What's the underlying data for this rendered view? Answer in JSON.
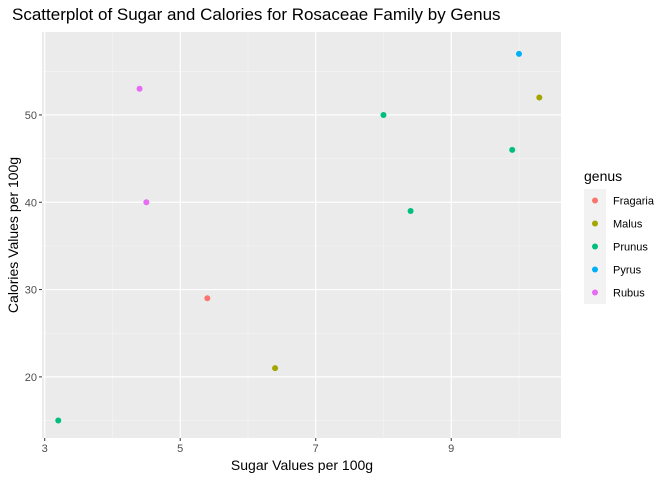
{
  "chart_data": {
    "type": "scatter",
    "title": "Scatterplot of Sugar and Calories for Rosaceae Family by Genus",
    "xlabel": "Sugar Values per 100g",
    "ylabel": "Calories Values per 100g",
    "xlim": [
      2.96,
      10.62
    ],
    "ylim": [
      13.0,
      59.5
    ],
    "x_ticks": [
      3,
      5,
      7,
      9
    ],
    "y_ticks": [
      20,
      30,
      40,
      50
    ],
    "grid": true,
    "legend": {
      "title": "genus",
      "position": "right",
      "items": [
        {
          "label": "Fragaria",
          "color": "#F8766D"
        },
        {
          "label": "Malus",
          "color": "#A3A500"
        },
        {
          "label": "Prunus",
          "color": "#00BF7D"
        },
        {
          "label": "Pyrus",
          "color": "#00B0F6"
        },
        {
          "label": "Rubus",
          "color": "#E76BF3"
        }
      ]
    },
    "series": [
      {
        "name": "Fragaria",
        "color": "#F8766D",
        "points": [
          [
            5.4,
            29
          ]
        ]
      },
      {
        "name": "Malus",
        "color": "#A3A500",
        "points": [
          [
            6.4,
            21
          ],
          [
            10.3,
            52
          ]
        ]
      },
      {
        "name": "Prunus",
        "color": "#00BF7D",
        "points": [
          [
            3.2,
            15
          ],
          [
            8.0,
            50
          ],
          [
            8.4,
            39
          ],
          [
            9.9,
            46
          ]
        ]
      },
      {
        "name": "Pyrus",
        "color": "#00B0F6",
        "points": [
          [
            10.0,
            57
          ]
        ]
      },
      {
        "name": "Rubus",
        "color": "#E76BF3",
        "points": [
          [
            4.4,
            53
          ],
          [
            4.5,
            40
          ]
        ]
      }
    ]
  }
}
